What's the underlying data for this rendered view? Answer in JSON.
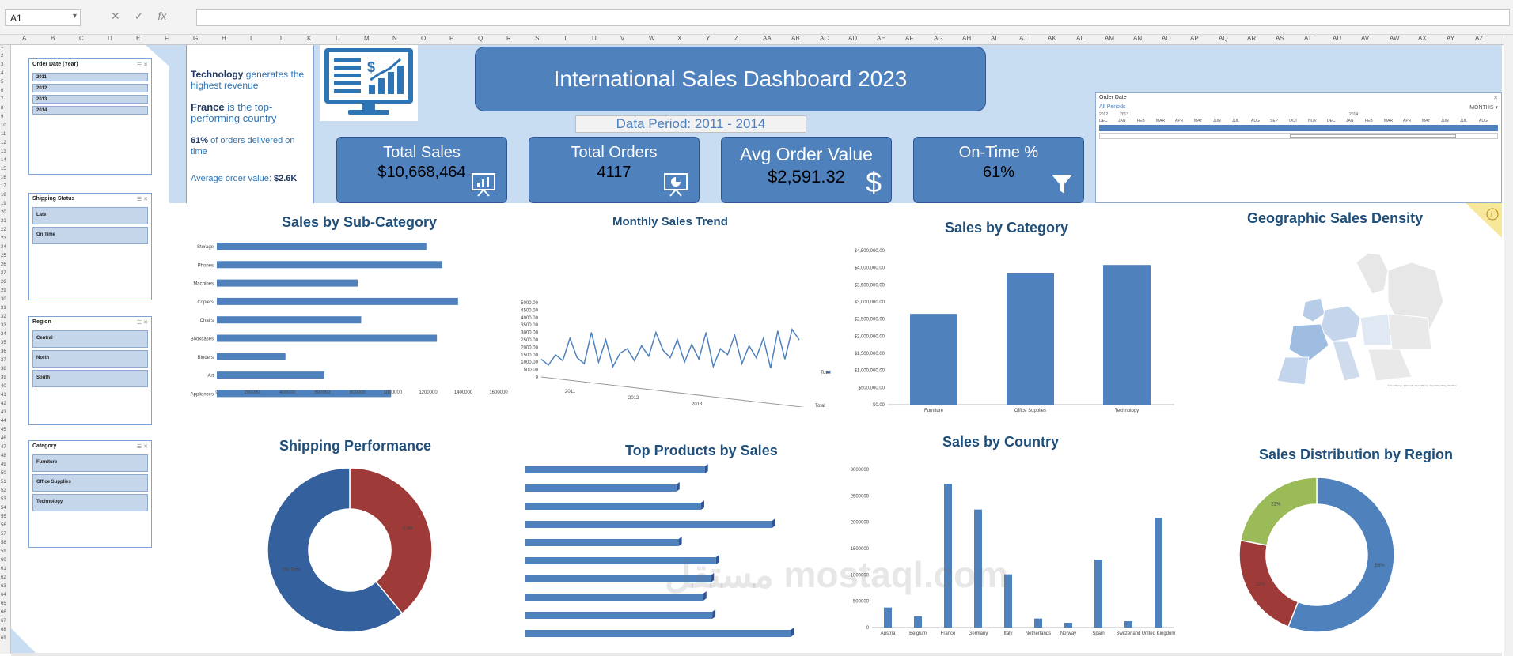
{
  "formula": {
    "cell_ref": "A1",
    "cancel": "✕",
    "confirm": "✓",
    "fx": "fx"
  },
  "columns": [
    "A",
    "B",
    "C",
    "D",
    "E",
    "F",
    "G",
    "H",
    "I",
    "J",
    "K",
    "L",
    "M",
    "N",
    "O",
    "P",
    "Q",
    "R",
    "S",
    "T",
    "U",
    "V",
    "W",
    "X",
    "Y",
    "Z",
    "AA",
    "AB",
    "AC",
    "AD",
    "AE",
    "AF",
    "AG",
    "AH",
    "AI",
    "AJ",
    "AK",
    "AL",
    "AM",
    "AN",
    "AO",
    "AP",
    "AQ",
    "AR",
    "AS",
    "AT",
    "AU",
    "AV",
    "AW",
    "AX",
    "AY",
    "AZ"
  ],
  "slicers": {
    "order_date": {
      "title": "Order Date (Year)",
      "items": [
        "2011",
        "2012",
        "2013",
        "2014"
      ]
    },
    "shipping_status": {
      "title": "Shipping Status",
      "items": [
        "Late",
        "On Time"
      ]
    },
    "region": {
      "title": "Region",
      "items": [
        "Central",
        "North",
        "South"
      ]
    },
    "category": {
      "title": "Category",
      "items": [
        "Furniture",
        "Office Supplies",
        "Technology"
      ]
    }
  },
  "insights": {
    "line1_bold": "Technology",
    "line1_rest": " generates the highest revenue",
    "line2_bold": "France",
    "line2_rest": " is the top-performing country",
    "line3_bold": "61%",
    "line3_rest": " of orders delivered on time",
    "line4_rest": "Average order value: ",
    "line4_bold": "$2.6K"
  },
  "title": "International Sales Dashboard 2023",
  "period": "Data Period: 2011 - 2014",
  "kpis": [
    {
      "label": "Total Sales",
      "value": "$10,668,464",
      "icon": "presentation-chart-icon"
    },
    {
      "label": "Total Orders",
      "value": "4117",
      "icon": "pie-presentation-icon"
    },
    {
      "label": "Avg Order Value",
      "value": "$2,591.32",
      "icon": "dollar-icon"
    },
    {
      "label": "On-Time %",
      "value": "61%",
      "icon": "filter-icon"
    }
  ],
  "timeline": {
    "title": "Order Date",
    "all_periods": "All Periods",
    "unit": "MONTHS",
    "years": [
      "2012",
      "2013",
      "2014"
    ],
    "months": [
      "DEC",
      "JAN",
      "FEB",
      "MAR",
      "APR",
      "MAY",
      "JUN",
      "JUL",
      "AUG",
      "SEP",
      "OCT",
      "NOV",
      "DEC",
      "JAN",
      "FEB",
      "MAR",
      "APR",
      "MAY",
      "JUN",
      "JUL",
      "AUG"
    ]
  },
  "chart_titles": {
    "subcat": "Sales by Sub-Category",
    "monthly": "Monthly Sales Trend",
    "category": "Sales by Category",
    "geo": "Geographic Sales Density",
    "shipping": "Shipping Performance",
    "products": "Top Products by Sales",
    "country": "Sales by Country",
    "region": "Sales Distribution by Region"
  },
  "chart_data": [
    {
      "type": "bar",
      "orientation": "horizontal",
      "title": "Sales by Sub-Category",
      "categories": [
        "Storage",
        "Phones",
        "Machines",
        "Copiers",
        "Chairs",
        "Bookcases",
        "Binders",
        "Art",
        "Appliances",
        "Accessories"
      ],
      "values": [
        1190000,
        1280000,
        800000,
        1370000,
        820000,
        1250000,
        390000,
        610000,
        990000,
        670000
      ],
      "xlim": [
        0,
        1600000
      ],
      "xticks": [
        "0",
        "200000",
        "400000",
        "600000",
        "800000",
        "1000000",
        "1200000",
        "1400000",
        "1600000"
      ]
    },
    {
      "type": "line",
      "title": "Monthly Sales Trend",
      "legend": "Total",
      "yticks": [
        "0",
        "500.00",
        "1000.00",
        "1500.00",
        "2000.00",
        "2500.00",
        "3000.00",
        "3500.00",
        "4000.00",
        "4500.00",
        "5000.00"
      ],
      "ylim": [
        0,
        5000
      ],
      "years": [
        "2011",
        "2012",
        "2013",
        "2014"
      ],
      "total_label": "Total",
      "values": [
        1200,
        800,
        1500,
        1100,
        2600,
        1300,
        900,
        3000,
        1000,
        2500,
        700,
        1600,
        1900,
        1100,
        2100,
        1400,
        3000,
        1800,
        1300,
        2500,
        1000,
        2200,
        1200,
        3000,
        700,
        1900,
        1500,
        2800,
        900,
        2100,
        1300,
        2600,
        600,
        3100,
        1200,
        3200,
        2500
      ]
    },
    {
      "type": "bar",
      "title": "Sales by Category",
      "categories": [
        "Furniture",
        "Office Supplies",
        "Technology"
      ],
      "values": [
        2650000,
        3830000,
        4080000
      ],
      "ylim": [
        0,
        4500000
      ],
      "yticks": [
        "$0.00",
        "$500,000.00",
        "$1,000,000.00",
        "$1,500,000.00",
        "$2,000,000.00",
        "$2,500,000.00",
        "$3,000,000.00",
        "$3,500,000.00",
        "$4,000,000.00",
        "$4,500,000.00"
      ]
    },
    {
      "type": "pie",
      "title": "Shipping Performance",
      "series": [
        {
          "name": "Late",
          "value": 39
        },
        {
          "name": "On Time",
          "value": 61
        }
      ],
      "colors": [
        "#9e3a38",
        "#35609e"
      ]
    },
    {
      "type": "bar",
      "orientation": "horizontal",
      "title": "Top Products by Sales",
      "values": [
        240,
        202,
        235,
        330,
        205,
        255,
        248,
        238,
        250,
        355
      ]
    },
    {
      "type": "bar",
      "title": "Sales by Country",
      "categories": [
        "Austria",
        "Belgium",
        "France",
        "Germany",
        "Italy",
        "Netherlands",
        "Norway",
        "Spain",
        "Switzerland",
        "United Kingdom"
      ],
      "values": [
        380000,
        210000,
        2730000,
        2240000,
        1010000,
        170000,
        90000,
        1290000,
        120000,
        2080000
      ],
      "ylim": [
        0,
        3000000
      ],
      "yticks": [
        "0",
        "500000",
        "1000000",
        "1500000",
        "2000000",
        "2500000",
        "3000000"
      ]
    },
    {
      "type": "pie",
      "title": "Sales Distribution by Region",
      "series": [
        {
          "name": "",
          "value": 56,
          "label": "56%"
        },
        {
          "name": "",
          "value": 22,
          "label": "22%"
        },
        {
          "name": "",
          "value": 22,
          "label": "22%"
        }
      ],
      "colors": [
        "#4f81bd",
        "#9e3a38",
        "#9bbb59"
      ]
    }
  ],
  "watermark": "مستقل mostaql.com",
  "colors": {
    "accent": "#4f81bd",
    "band": "#c8dcf2",
    "title": "#1f4e79"
  }
}
